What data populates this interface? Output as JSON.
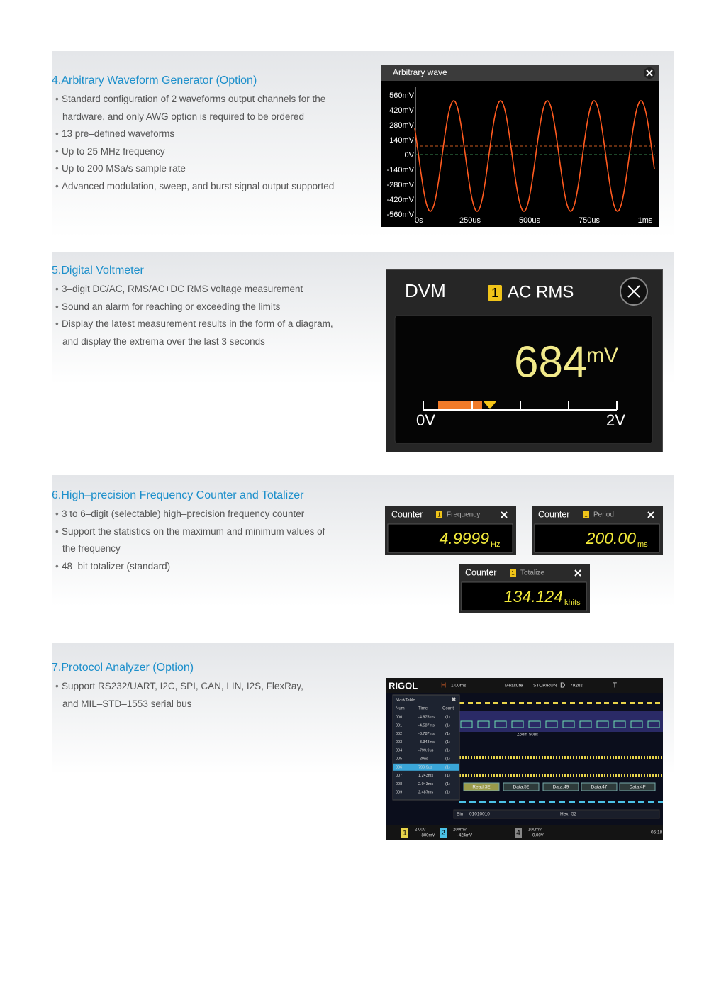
{
  "sections": [
    {
      "title": "4.Arbitrary Waveform Generator (Option)",
      "items": [
        [
          "Standard configuration of 2 waveforms output channels for the",
          "hardware, and only AWG option is required to be ordered"
        ],
        [
          "13 pre–defined waveforms"
        ],
        [
          "Up to 25 MHz frequency"
        ],
        [
          "Up to 200 MSa/s sample rate"
        ],
        [
          "Advanced modulation, sweep, and burst signal output supported"
        ]
      ]
    },
    {
      "title": "5.Digital Voltmeter",
      "items": [
        [
          "3–digit DC/AC, RMS/AC+DC RMS voltage measurement"
        ],
        [
          "Sound an alarm for reaching or exceeding the limits"
        ],
        [
          "Display the latest measurement results in the form of a diagram,",
          "and display the extrema over the last 3 seconds"
        ]
      ]
    },
    {
      "title": "6.High–precision Frequency Counter and Totalizer",
      "items": [
        [
          "3 to 6–digit (selectable) high–precision frequency counter"
        ],
        [
          "Support the statistics on the maximum and minimum values of",
          "the frequency"
        ],
        [
          "48–bit totalizer (standard)"
        ]
      ]
    },
    {
      "title": "7.Protocol Analyzer (Option)",
      "items": [
        [
          "Support RS232/UART, I2C, SPI, CAN, LIN, I2S, FlexRay,",
          "and MIL–STD–1553 serial bus"
        ]
      ]
    }
  ],
  "awg": {
    "title": "Arbitrary wave",
    "y_labels": [
      "560mV",
      "420mV",
      "280mV",
      "140mV",
      "0V",
      "-140mV",
      "-280mV",
      "-420mV",
      "-560mV"
    ],
    "x_labels": [
      "0s",
      "250us",
      "500us",
      "750us",
      "1ms"
    ]
  },
  "dvm": {
    "title": "DVM",
    "channel": "1",
    "mode": "AC RMS",
    "reading": "684",
    "unit": "mV",
    "scale_min": "0V",
    "scale_max": "2V"
  },
  "counters": [
    {
      "title": "Counter",
      "channel": "1",
      "mode": "Frequency",
      "reading": "4.9999",
      "unit": "Hz"
    },
    {
      "title": "Counter",
      "channel": "1",
      "mode": "Period",
      "reading": "200.00",
      "unit": "ms"
    },
    {
      "title": "Counter",
      "channel": "1",
      "mode": "Totalize",
      "reading": "134.124",
      "unit": "khits"
    }
  ],
  "protocol": {
    "brand": "RIGOL",
    "top_bar": [
      "H",
      "1.00ms",
      "Measure",
      "STOP/RUN",
      "D",
      "792us",
      "T"
    ],
    "mark_table": {
      "title": "MarkTable",
      "columns": [
        "Num",
        "Time",
        "Count"
      ],
      "rows": [
        [
          "000",
          "-4.975ms",
          "(1)"
        ],
        [
          "001",
          "-4.587ms",
          "(1)"
        ],
        [
          "002",
          "-3.787ms",
          "(1)"
        ],
        [
          "003",
          "-3.343ms",
          "(1)"
        ],
        [
          "004",
          "-799.9us",
          "(1)"
        ],
        [
          "005",
          "-20ns",
          "(1)"
        ],
        [
          "006",
          "799.9us",
          "(1)"
        ],
        [
          "007",
          "1.243ms",
          "(1)"
        ],
        [
          "008",
          "2.043ms",
          "(1)"
        ],
        [
          "009",
          "2.487ms",
          "(1)"
        ]
      ]
    },
    "zoom": "Zoom 50us",
    "decode_labels": [
      "Read:3E",
      "Data:52",
      "Data:49",
      "Data:47",
      "Data:4F"
    ],
    "bin_label": "Bin",
    "bin_value": "01010010",
    "hex_label": "Hex",
    "hex_value": "52",
    "channels": [
      {
        "id": "1",
        "scale": "2.00V",
        "offset": "+800mV"
      },
      {
        "id": "2",
        "scale": "200mV",
        "offset": "-424mV"
      },
      {
        "id": "4",
        "scale": "100mV",
        "offset": "0.00V"
      }
    ],
    "time": "05:18"
  }
}
